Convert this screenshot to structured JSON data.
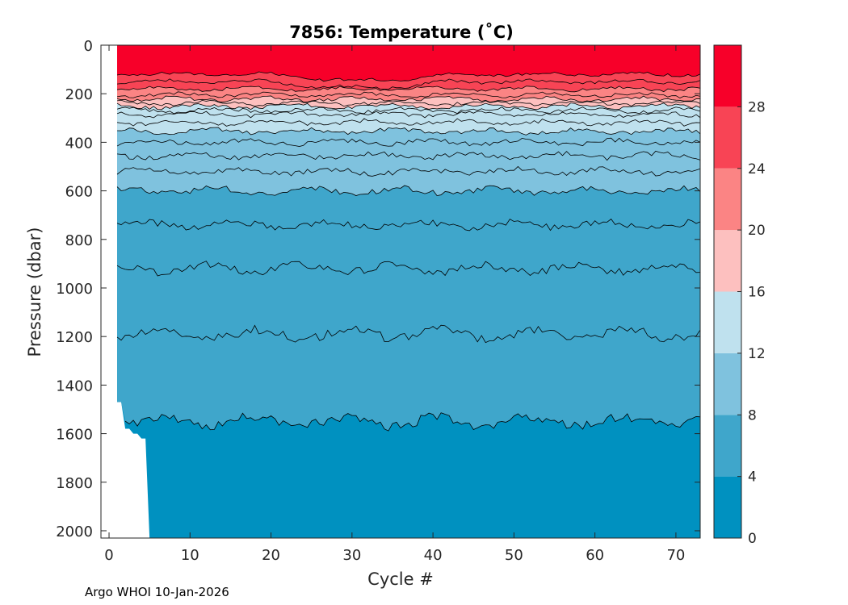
{
  "chart_data": {
    "type": "filled-contour",
    "title": "7856:  Temperature (˚C)",
    "xlabel": "Cycle #",
    "ylabel": "Pressure (dbar)",
    "xlim": [
      -1,
      73
    ],
    "ylim": [
      2030,
      0
    ],
    "x_ticks": [
      0,
      10,
      20,
      30,
      40,
      50,
      60,
      70
    ],
    "y_ticks": [
      0,
      200,
      400,
      600,
      800,
      1000,
      1200,
      1400,
      1600,
      1800,
      2000
    ],
    "colorbar": {
      "limits": [
        0,
        32
      ],
      "ticks": [
        0,
        4,
        8,
        12,
        16,
        20,
        24,
        28
      ],
      "levels": [
        0,
        4,
        8,
        12,
        16,
        20,
        24,
        28,
        32
      ],
      "colors": [
        "#0091c0",
        "#3fa6cb",
        "#7fc2de",
        "#bfe1ee",
        "#fdc0bf",
        "#fb8484",
        "#f84455",
        "#f70029"
      ]
    },
    "isotherms": [
      {
        "temp": 28,
        "mean_pressure": 120
      },
      {
        "temp": 26,
        "mean_pressure": 150
      },
      {
        "temp": 24,
        "mean_pressure": 180
      },
      {
        "temp": 22,
        "mean_pressure": 205
      },
      {
        "temp": 20,
        "mean_pressure": 222
      },
      {
        "temp": 18,
        "mean_pressure": 238
      },
      {
        "temp": 16,
        "mean_pressure": 252
      },
      {
        "temp": 15,
        "mean_pressure": 268
      },
      {
        "temp": 14,
        "mean_pressure": 285
      },
      {
        "temp": 13,
        "mean_pressure": 318
      },
      {
        "temp": 12,
        "mean_pressure": 355
      },
      {
        "temp": 11,
        "mean_pressure": 400
      },
      {
        "temp": 10,
        "mean_pressure": 455
      },
      {
        "temp": 9,
        "mean_pressure": 520
      },
      {
        "temp": 8,
        "mean_pressure": 600
      },
      {
        "temp": 7,
        "mean_pressure": 740
      },
      {
        "temp": 6,
        "mean_pressure": 920
      },
      {
        "temp": 5,
        "mean_pressure": 1190
      },
      {
        "temp": 4,
        "mean_pressure": 1550
      }
    ],
    "first_cycles_max_pressure": [
      {
        "cycle": 1,
        "pressure": 1470
      },
      {
        "cycle": 2,
        "pressure": 1580
      },
      {
        "cycle": 3,
        "pressure": 1600
      },
      {
        "cycle": 4,
        "pressure": 1620
      },
      {
        "cycle": 5,
        "pressure": 2030
      }
    ],
    "last_cycle": 73
  },
  "footer": {
    "text": "Argo WHOI 10-Jan-2026"
  }
}
